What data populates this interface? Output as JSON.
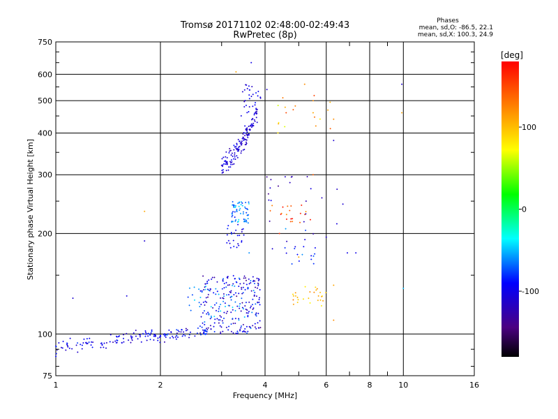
{
  "chart_data": {
    "type": "scatter",
    "title": "Tromsø 20171102 02:48:00-02:49:43",
    "subtitle": "RwPretec (8p)",
    "xlabel": "Frequency [MHz]",
    "ylabel": "Stationary phase Virtual Height [km]",
    "x_scale": "log",
    "y_scale": "log",
    "xlim": [
      1,
      16
    ],
    "ylim": [
      75,
      750
    ],
    "x_ticks": [
      1,
      2,
      4,
      6,
      8,
      10,
      16
    ],
    "x_tick_labels": [
      "1",
      "2",
      "4",
      "6",
      "8",
      "10",
      "16"
    ],
    "x_minor_ticks": [
      3,
      5,
      7,
      9
    ],
    "y_ticks": [
      75,
      100,
      200,
      300,
      400,
      500,
      600,
      750
    ],
    "y_tick_labels": [
      "75",
      "100",
      "200",
      "300",
      "400",
      "500",
      "600",
      "750"
    ],
    "grid": true,
    "legend": {
      "title": "Phases",
      "lines": [
        "mean, sd,O: -86.5, 22.1",
        "mean, sd,X: 100.3, 24.9"
      ],
      "position": "top-right"
    },
    "colorbar": {
      "label": "[deg]",
      "range": [
        -180,
        180
      ],
      "ticks": [
        100,
        0,
        -100
      ],
      "tick_labels": [
        "100",
        "0",
        "-100"
      ]
    },
    "colors": {
      "grid": "#000000",
      "background": "#ffffff"
    },
    "clusters": [
      {
        "name": "low_trace",
        "fx": [
          1.0,
          1.9
        ],
        "hy": [
          90,
          100
        ],
        "n": 90,
        "ph": -100,
        "phs": 12
      },
      {
        "name": "low_trace2",
        "fx": [
          1.9,
          2.9
        ],
        "hy": [
          97,
          104
        ],
        "n": 70,
        "ph": -95,
        "phs": 15
      },
      {
        "name": "e_spread",
        "fx": [
          2.6,
          3.9
        ],
        "hy": [
          100,
          150
        ],
        "n": 220,
        "ph": -105,
        "phs": 20
      },
      {
        "name": "e_spread_cyan",
        "fx": [
          2.4,
          3.8
        ],
        "hy": [
          110,
          140
        ],
        "n": 50,
        "ph": -60,
        "phs": 12
      },
      {
        "name": "f_trace",
        "fx": [
          3.0,
          3.8
        ],
        "hy": [
          320,
          460
        ],
        "n": 140,
        "ph": -108,
        "phs": 10
      },
      {
        "name": "f_trace_high",
        "fx": [
          3.4,
          3.9
        ],
        "hy": [
          450,
          560
        ],
        "n": 30,
        "ph": -100,
        "phs": 12
      },
      {
        "name": "mid_cluster",
        "fx": [
          3.2,
          3.6
        ],
        "hy": [
          215,
          250
        ],
        "n": 60,
        "ph": -65,
        "phs": 14
      },
      {
        "name": "mid_blue",
        "fx": [
          3.1,
          3.5
        ],
        "hy": [
          180,
          215
        ],
        "n": 25,
        "ph": -100,
        "phs": 12
      },
      {
        "name": "x_cluster",
        "fx": [
          4.8,
          6.0
        ],
        "hy": [
          120,
          140
        ],
        "n": 25,
        "ph": 100,
        "phs": 15
      },
      {
        "name": "x_f",
        "fx": [
          4.0,
          5.3
        ],
        "hy": [
          215,
          245
        ],
        "n": 18,
        "ph": 150,
        "phs": 25
      },
      {
        "name": "x_upper",
        "fx": [
          4.3,
          6.2
        ],
        "hy": [
          400,
          520
        ],
        "n": 14,
        "ph": 110,
        "phs": 25
      },
      {
        "name": "mid_f",
        "fx": [
          4.5,
          5.6
        ],
        "hy": [
          160,
          210
        ],
        "n": 20,
        "ph": -90,
        "phs": 20
      },
      {
        "name": "misc_blue",
        "fx": [
          4.0,
          6.5
        ],
        "hy": [
          210,
          300
        ],
        "n": 20,
        "ph": -110,
        "phs": 15
      }
    ],
    "sample_points": [
      [
        1.0,
        92,
        -100
      ],
      [
        1.05,
        95,
        -95
      ],
      [
        1.1,
        97,
        -100
      ],
      [
        1.12,
        128,
        -110
      ],
      [
        1.25,
        97,
        -100
      ],
      [
        1.5,
        98,
        -95
      ],
      [
        1.6,
        130,
        -105
      ],
      [
        1.8,
        190,
        -110
      ],
      [
        1.8,
        233,
        110
      ],
      [
        2.0,
        99,
        -90
      ],
      [
        2.3,
        103,
        -90
      ],
      [
        2.8,
        113,
        -60
      ],
      [
        3.0,
        320,
        -115
      ],
      [
        3.3,
        360,
        -110
      ],
      [
        3.5,
        420,
        -100
      ],
      [
        3.6,
        520,
        -95
      ],
      [
        3.65,
        650,
        -100
      ],
      [
        3.3,
        610,
        110
      ],
      [
        3.5,
        240,
        -60
      ],
      [
        3.6,
        175,
        -60
      ],
      [
        4.05,
        540,
        -110
      ],
      [
        4.5,
        510,
        130
      ],
      [
        4.6,
        460,
        150
      ],
      [
        5.2,
        560,
        120
      ],
      [
        5.5,
        500,
        120
      ],
      [
        5.5,
        460,
        110
      ],
      [
        5.6,
        420,
        120
      ],
      [
        6.3,
        440,
        120
      ],
      [
        6.3,
        380,
        -110
      ],
      [
        5.5,
        300,
        140
      ],
      [
        4.4,
        200,
        160
      ],
      [
        4.5,
        240,
        170
      ],
      [
        5.4,
        220,
        170
      ],
      [
        6.0,
        195,
        -110
      ],
      [
        6.9,
        175,
        -100
      ],
      [
        7.3,
        175,
        -100
      ],
      [
        5.0,
        170,
        110
      ],
      [
        4.2,
        180,
        -110
      ],
      [
        6.3,
        140,
        110
      ],
      [
        6.3,
        110,
        120
      ],
      [
        9.9,
        560,
        -110
      ],
      [
        9.9,
        460,
        110
      ],
      [
        10,
        137,
        -50
      ],
      [
        6.7,
        245,
        -110
      ],
      [
        4.9,
        130,
        100
      ],
      [
        5.7,
        130,
        110
      ]
    ]
  }
}
